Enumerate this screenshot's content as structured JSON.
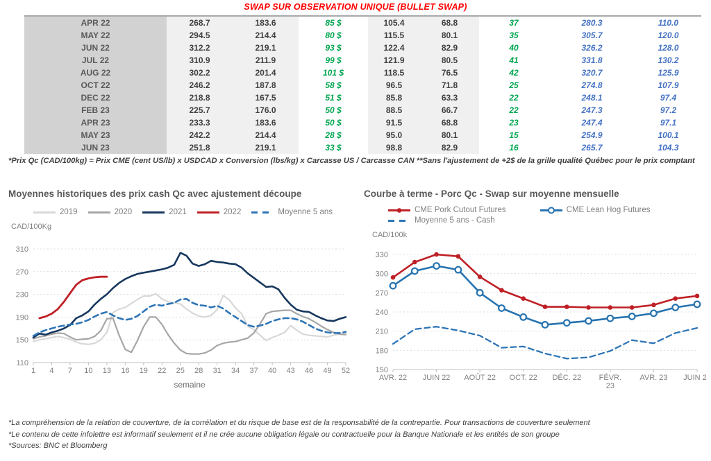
{
  "page": {
    "title": "SWAP SUR OBSERVATION UNIQUE (BULLET SWAP)",
    "table_footnote": "*Prix Qc (CAD/100kg) = Prix CME (cent US/lb) x USDCAD x Conversion (lbs/kg) x Carcasse US / Carcasse CAN **Sans l'ajustement de +2$ de la grille qualité Québec pour le prix comptant",
    "footnotes": [
      "*La compréhension de la relation de couverture, de la corrélation et du risque de base est de la responsabilité de la contrepartie. Pour transactions de couverture seulement",
      "*Le contenu de cette infolettre est informatif seulement et il ne crée aucune obligation légale ou contractuelle pour la Banque Nationale et les entités de son groupe",
      "*Sources: BNC et Bloomberg"
    ]
  },
  "colors": {
    "title_red": "#ff0000",
    "green_text": "#00a651",
    "blue_text": "#4472c4",
    "red_series": "#bf2026",
    "navy_series": "#17375e",
    "gray_2019": "#d8d8d8",
    "gray_2020": "#a6a6a6",
    "dashed_blue": "#2e75b6",
    "lean_hog_blue": "#2673b0"
  },
  "table": {
    "rows": [
      [
        "APR 22",
        "268.7",
        "183.6",
        "85 $",
        "105.4",
        "68.8",
        "37",
        "280.3",
        "110.0"
      ],
      [
        "MAY 22",
        "294.5",
        "214.4",
        "80 $",
        "115.5",
        "80.1",
        "35",
        "305.7",
        "120.0"
      ],
      [
        "JUN 22",
        "312.2",
        "219.1",
        "93 $",
        "122.4",
        "82.9",
        "40",
        "326.2",
        "128.0"
      ],
      [
        "JUL 22",
        "310.9",
        "211.9",
        "99 $",
        "121.9",
        "80.5",
        "41",
        "331.8",
        "130.2"
      ],
      [
        "AUG 22",
        "302.2",
        "201.4",
        "101 $",
        "118.5",
        "76.5",
        "42",
        "320.7",
        "125.9"
      ],
      [
        "OCT 22",
        "246.2",
        "187.8",
        "58 $",
        "96.5",
        "71.8",
        "25",
        "274.8",
        "107.9"
      ],
      [
        "DEC 22",
        "218.8",
        "167.5",
        "51 $",
        "85.8",
        "63.3",
        "22",
        "248.1",
        "97.4"
      ],
      [
        "FEB 23",
        "225.7",
        "176.0",
        "50 $",
        "88.5",
        "66.7",
        "22",
        "247.3",
        "97.2"
      ],
      [
        "APR 23",
        "233.3",
        "183.6",
        "50 $",
        "91.5",
        "68.8",
        "23",
        "247.4",
        "97.1"
      ],
      [
        "MAY 23",
        "242.2",
        "214.4",
        "28 $",
        "95.0",
        "80.1",
        "15",
        "254.9",
        "100.1"
      ],
      [
        "JUN 23",
        "251.8",
        "219.1",
        "33 $",
        "98.8",
        "82.9",
        "16",
        "265.7",
        "104.3"
      ]
    ]
  },
  "chart_data": [
    {
      "type": "line",
      "title": "Moyennes historiques des prix cash Qc avec ajustement découpe",
      "y_axis_label": "CAD/100Kg",
      "xlabel": "semaine",
      "ylim": [
        110,
        310
      ],
      "yticks": [
        110,
        150,
        190,
        230,
        270,
        310
      ],
      "xticks": [
        1,
        4,
        7,
        10,
        13,
        16,
        19,
        22,
        25,
        28,
        31,
        34,
        37,
        40,
        43,
        46,
        49,
        52
      ],
      "x_range": [
        1,
        52
      ],
      "grid": true,
      "legend_position": "top",
      "series": [
        {
          "name": "2019",
          "color": "#d8d8d8",
          "style": "solid",
          "width": 2.2,
          "values": [
            147,
            150,
            152,
            154,
            156,
            154,
            151,
            146,
            143,
            142,
            144,
            150,
            163,
            198,
            204,
            207,
            214,
            221,
            227,
            227,
            231,
            222,
            217,
            215,
            213,
            204,
            197,
            192,
            190,
            193,
            203,
            228,
            220,
            206,
            196,
            174,
            168,
            158,
            149,
            154,
            158,
            163,
            175,
            167,
            160,
            158,
            157,
            156,
            155,
            158,
            160,
            161
          ]
        },
        {
          "name": "2020",
          "color": "#a6a6a6",
          "style": "solid",
          "width": 2.2,
          "values": [
            152,
            155,
            157,
            160,
            162,
            161,
            155,
            150,
            151,
            152,
            156,
            166,
            187,
            188,
            158,
            133,
            128,
            149,
            173,
            190,
            190,
            177,
            159,
            144,
            132,
            126,
            125,
            125,
            127,
            132,
            140,
            144,
            146,
            147,
            150,
            153,
            162,
            178,
            196,
            200,
            201,
            202,
            202,
            196,
            191,
            187,
            181,
            174,
            168,
            163,
            160,
            159
          ]
        },
        {
          "name": "2021",
          "color": "#17375e",
          "style": "solid",
          "width": 2.6,
          "values": [
            154,
            161,
            159,
            163,
            166,
            170,
            176,
            188,
            193,
            200,
            212,
            222,
            230,
            241,
            250,
            257,
            262,
            266,
            268,
            270,
            272,
            274,
            277,
            282,
            303,
            298,
            284,
            280,
            283,
            289,
            287,
            286,
            284,
            283,
            277,
            267,
            259,
            251,
            243,
            244,
            239,
            224,
            212,
            203,
            200,
            199,
            193,
            188,
            184,
            183,
            187,
            190
          ]
        },
        {
          "name": "2022",
          "color": "#bf2026",
          "style": "solid",
          "width": 2.8,
          "values": [
            null,
            188,
            191,
            196,
            204,
            217,
            232,
            247,
            255,
            258,
            260,
            261,
            261,
            null,
            null,
            null,
            null,
            null,
            null,
            null,
            null,
            null,
            null,
            null,
            null,
            null,
            null,
            null,
            null,
            null,
            null,
            null,
            null,
            null,
            null,
            null,
            null,
            null,
            null,
            null,
            null,
            null,
            null,
            null,
            null,
            null,
            null,
            null,
            null,
            null,
            null,
            null
          ]
        },
        {
          "name": "Moyenne 5 ans",
          "color": "#2e75b6",
          "style": "dashed",
          "width": 2.6,
          "values": [
            157,
            163,
            167,
            170,
            173,
            175,
            177,
            178,
            181,
            185,
            191,
            196,
            199,
            193,
            188,
            185,
            187,
            192,
            200,
            208,
            212,
            210,
            213,
            215,
            221,
            222,
            215,
            211,
            210,
            207,
            210,
            205,
            197,
            190,
            183,
            176,
            173,
            175,
            178,
            183,
            186,
            188,
            188,
            186,
            182,
            176,
            170,
            166,
            163,
            162,
            162,
            164
          ]
        }
      ]
    },
    {
      "type": "line",
      "title": "Courbe à terme - Porc Qc - Swap sur moyenne mensuelle",
      "y_axis_label": "CAD/100k",
      "xlabel": "",
      "ylim": [
        150,
        330
      ],
      "yticks": [
        150,
        180,
        210,
        240,
        270,
        300,
        330
      ],
      "xticks": [
        {
          "pos": 0,
          "label": "AVR. 22"
        },
        {
          "pos": 2,
          "label": "JUIN 22"
        },
        {
          "pos": 4,
          "label": "AOÛT 22"
        },
        {
          "pos": 6,
          "label": "OCT. 22"
        },
        {
          "pos": 8,
          "label": "DÉC. 22"
        },
        {
          "pos": 10,
          "label": "FÉVR.\n23"
        },
        {
          "pos": 12,
          "label": "AVR. 23"
        },
        {
          "pos": 14,
          "label": "JUIN 23"
        }
      ],
      "x_range": [
        0,
        14
      ],
      "grid": true,
      "legend_position": "top",
      "series": [
        {
          "name": "CME Pork Cutout Futures",
          "color": "#bf2026",
          "style": "solid",
          "width": 2.6,
          "marker": "circle-filled",
          "values": [
            294,
            318,
            330,
            327,
            295,
            274,
            261,
            248,
            248,
            247,
            247,
            247,
            251,
            261,
            265
          ]
        },
        {
          "name": "CME Lean Hog Futures",
          "color": "#2673b0",
          "style": "solid",
          "width": 2.6,
          "marker": "circle-open",
          "values": [
            281,
            304,
            312,
            306,
            270,
            246,
            232,
            220,
            223,
            226,
            230,
            233,
            238,
            247,
            252
          ]
        },
        {
          "name": "Moyenne 5 ans - Cash",
          "color": "#2e75b6",
          "style": "dashed",
          "width": 2.3,
          "values": [
            190,
            213,
            217,
            211,
            203,
            184,
            186,
            175,
            167,
            169,
            179,
            196,
            191,
            207,
            215
          ]
        }
      ]
    }
  ]
}
